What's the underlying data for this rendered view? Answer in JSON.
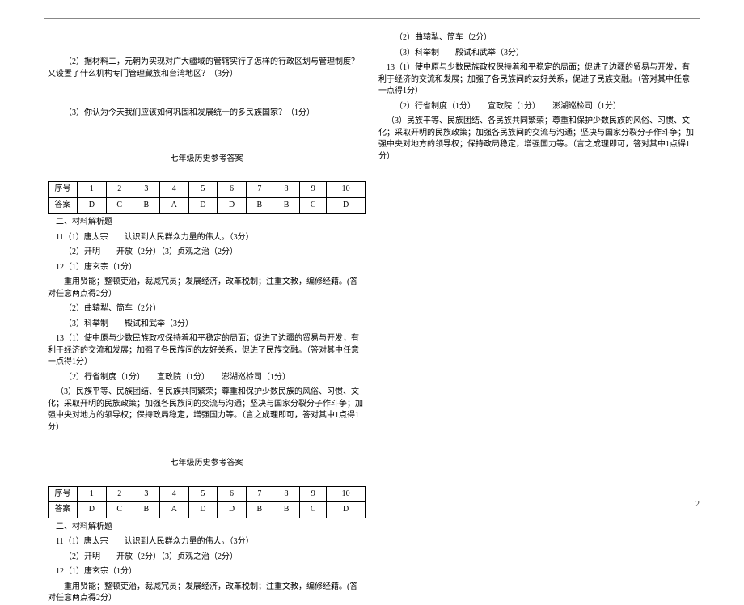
{
  "left": {
    "q2": "（2）据材料二，元朝为实现对广大疆域的管辖实行了怎样的行政区划与管理制度？又设置了什么机构专门管理藏族和台湾地区？（3分）",
    "q3": "（3）你认为今天我们应该如何巩固和发展统一的多民族国家？（1分）",
    "title": "七年级历史参考答案",
    "table": {
      "head_label": "序号",
      "ans_label": "答案",
      "nums": [
        "1",
        "2",
        "3",
        "4",
        "5",
        "6",
        "7",
        "8",
        "9",
        "10"
      ],
      "answers": [
        "D",
        "C",
        "B",
        "A",
        "D",
        "D",
        "B",
        "B",
        "C",
        "D"
      ]
    },
    "sec2": "二、材料解析题",
    "a11_1": "11（1）唐太宗　　认识到人民群众力量的伟大。（3分）",
    "a11_2": "（2）开明　　开放（2分）（3）贞观之治（2分）",
    "a12_1": "12（1）唐玄宗（1分）",
    "a12_2": "重用贤能；整顿吏治，裁减冗员；发展经济，改革税制；注重文教，编修经籍。(答对任意两点得2分）",
    "a12_2tail": "分）",
    "a12_3": "（2）曲辕犁、筒车（2分）",
    "a12_4": "（3）科举制　　殿试和武举（3分）",
    "a13_1": "13（1）使中原与少数民族政权保持着和平稳定的局面；促进了边疆的贸易与开发，有利于经济的交流和发展；加强了各民族间的友好关系，促进了民族交融。（答对其中任意一点得1分）",
    "a13_2": "（2）行省制度（1分）　　宣政院（1分）　　澎湖巡检司（1分）",
    "a13_3": "（3）民族平等、民族团结、各民族共同繁荣；尊重和保护少数民族的风俗、习惯、文化；采取开明的民族政策；加强各民族间的交流与沟通；坚决与国家分裂分子作斗争；加强中央对地方的领导权；保持政局稳定，增强国力等。（言之成理即可，答对其中1点得1分）"
  },
  "right": {
    "a12_3": "（2）曲辕犁、筒车（2分）",
    "a12_4": "（3）科举制　　殿试和武举（3分）",
    "a13_1": "13（1）使中原与少数民族政权保持着和平稳定的局面；促进了边疆的贸易与开发，有利于经济的交流和发展；加强了各民族间的友好关系，促进了民族交融。（答对其中任意一点得1分）",
    "a13_2": "（2）行省制度（1分）　　宣政院（1分）　　澎湖巡检司（1分）",
    "a13_3": "（3）民族平等、民族团结、各民族共同繁荣；尊重和保护少数民族的风俗、习惯、文化；采取开明的民族政策；加强各民族间的交流与沟通；坚决与国家分裂分子作斗争；加强中央对地方的领导权；保持政局稳定，增强国力等。（言之成理即可，答对其中1点得1分）"
  },
  "page_number": "2"
}
